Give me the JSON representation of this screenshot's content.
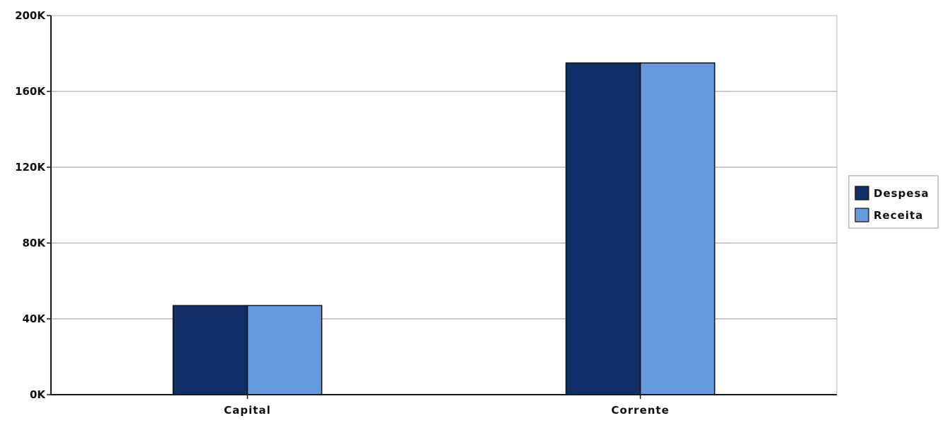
{
  "chart_data": {
    "type": "bar",
    "title": "",
    "xlabel": "",
    "ylabel": "",
    "categories": [
      "Capital",
      "Corrente"
    ],
    "series": [
      {
        "name": "Despesa",
        "color": "#0f2f66",
        "values": [
          47000,
          175000
        ]
      },
      {
        "name": "Receita",
        "color": "#6699dd",
        "values": [
          47000,
          175000
        ]
      }
    ],
    "ylim": [
      0,
      200000
    ],
    "yticks": [
      {
        "value": 0,
        "label": "0K"
      },
      {
        "value": 40000,
        "label": "40K"
      },
      {
        "value": 80000,
        "label": "80K"
      },
      {
        "value": 120000,
        "label": "120K"
      },
      {
        "value": 160000,
        "label": "160K"
      },
      {
        "value": 200000,
        "label": "200K"
      }
    ],
    "grid": true,
    "legend_position": "right"
  },
  "colors": {
    "background": "#ffffff",
    "gridline": "#b9b9b9",
    "axis": "#1a1a1a",
    "bar_outline": "#111111"
  }
}
